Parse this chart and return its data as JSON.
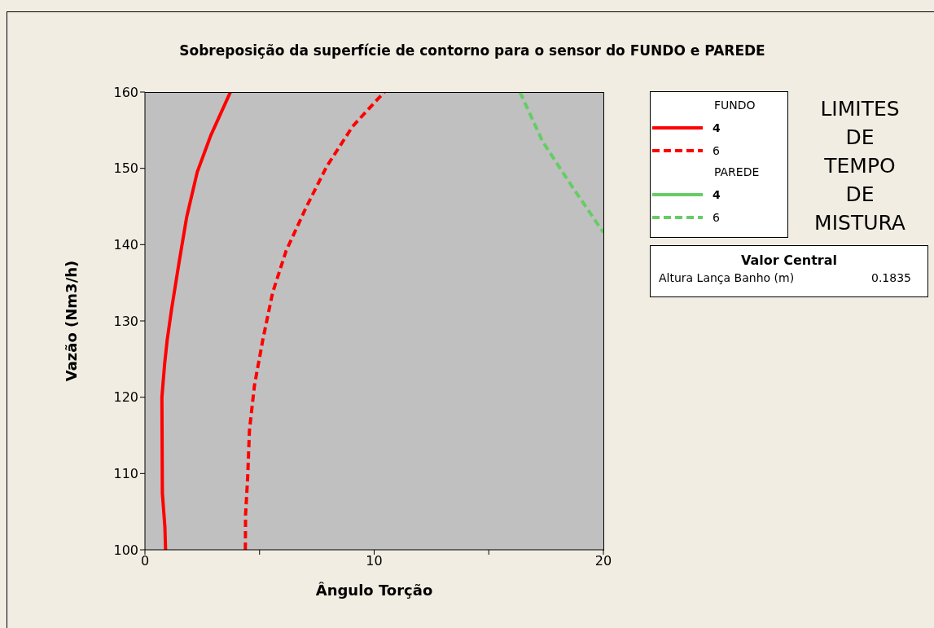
{
  "chart_data": {
    "type": "line",
    "title": "Sobreposição da superfície de contorno para o sensor do FUNDO e PAREDE",
    "xlabel": "Ângulo Torção",
    "ylabel": "Vazão (Nm3/h)",
    "legend_title": "LIMITES DE TEMPO DE MISTURA",
    "xlim": [
      0,
      20
    ],
    "xticks": [
      0,
      {
        "value": 5,
        "label": null
      },
      10,
      {
        "value": 15,
        "label": null
      },
      20
    ],
    "ylim": [
      100,
      160
    ],
    "yticks": [
      100,
      110,
      120,
      130,
      140,
      150,
      160
    ],
    "grid": false,
    "legend": "right",
    "annotations": [
      "FUNDO",
      "PAREDE",
      "Valor Central",
      "Altura Lança Banho (m)",
      "0.1835"
    ],
    "series": [
      {
        "name": "4",
        "color": "#ff0000",
        "line_style": "solid",
        "x": [
          0.9,
          0.87,
          0.76,
          0.74,
          0.86,
          0.97,
          1.16,
          1.49,
          1.82,
          2.28,
          2.87,
          3.73
        ],
        "values": [
          100,
          103,
          107.4,
          120,
          124.4,
          127.5,
          131.5,
          137.7,
          143.6,
          149.5,
          154.3,
          160
        ]
      },
      {
        "name": "6",
        "color": "#ff0000",
        "line_style": "dashed",
        "x": [
          4.38,
          4.39,
          4.48,
          4.56,
          4.78,
          5.14,
          5.57,
          6.16,
          7.02,
          7.94,
          9.06,
          10.44
        ],
        "values": [
          100,
          104.6,
          109.4,
          115.7,
          121.6,
          127.5,
          133.7,
          139.2,
          144.8,
          150.3,
          155.5,
          160
        ]
      },
      {
        "name": "4",
        "color": "#66cc66",
        "line_style": "solid"
      },
      {
        "name": "6",
        "color": "#66cc66",
        "line_style": "dashed",
        "x": [
          16.36,
          17.35,
          18.66,
          20
        ],
        "values": [
          160,
          153.5,
          147.5,
          141.6
        ]
      }
    ]
  }
}
